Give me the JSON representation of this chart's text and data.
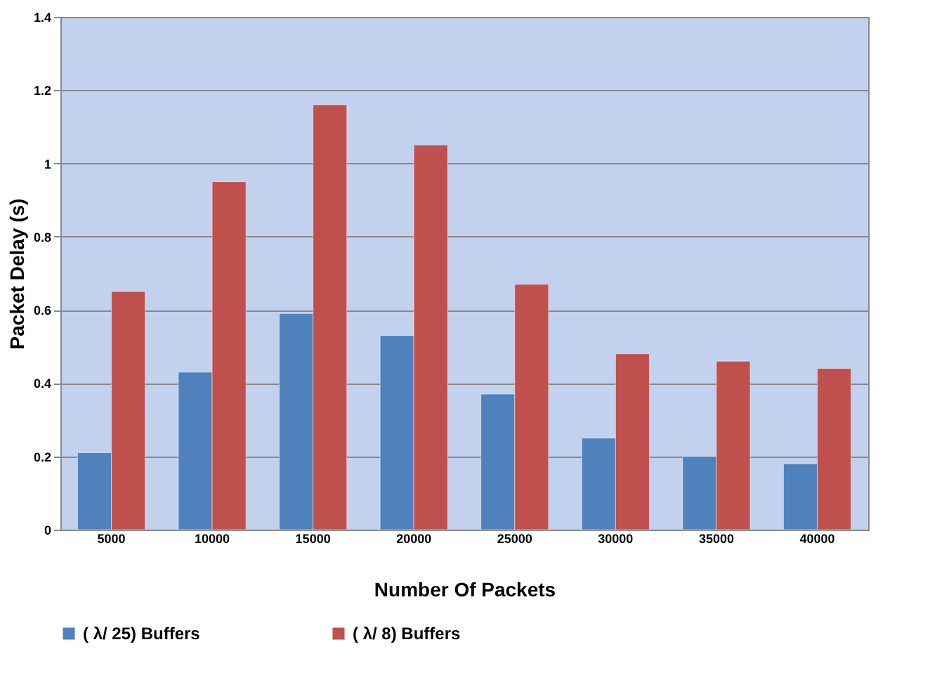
{
  "chart_data": {
    "type": "bar",
    "xlabel": "Number Of Packets",
    "ylabel": "Packet Delay (s)",
    "categories": [
      "5000",
      "10000",
      "15000",
      "20000",
      "25000",
      "30000",
      "35000",
      "40000"
    ],
    "series": [
      {
        "name": "( λ/ 25) Buffers",
        "color": "#4f81bd",
        "values": [
          0.21,
          0.43,
          0.59,
          0.53,
          0.37,
          0.25,
          0.2,
          0.18
        ]
      },
      {
        "name": "( λ/ 8) Buffers",
        "color": "#c0504d",
        "values": [
          0.65,
          0.95,
          1.16,
          1.05,
          0.67,
          0.48,
          0.46,
          0.44
        ]
      }
    ],
    "ylim": [
      0,
      1.4
    ],
    "yticks": [
      0,
      0.2,
      0.4,
      0.6,
      0.8,
      1,
      1.2,
      1.4
    ],
    "grid": "y",
    "legend": "bottom"
  }
}
